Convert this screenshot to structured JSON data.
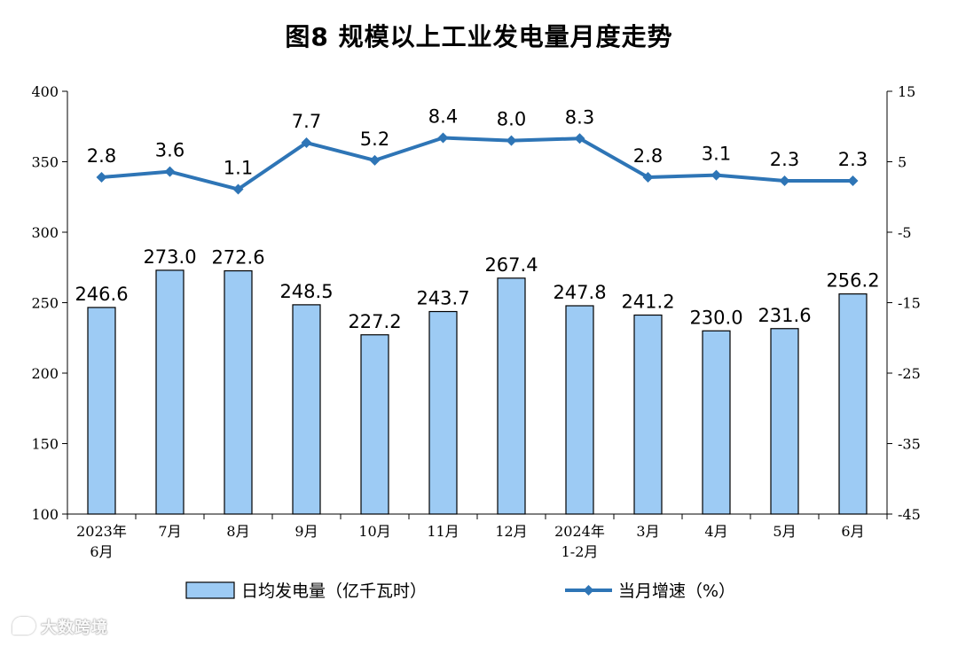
{
  "colors": {
    "bar_fill": "#9DCBF4",
    "bar_stroke": "#000000",
    "line": "#2E75B6",
    "axis": "#000000"
  },
  "chart_data": {
    "type": "bar+line",
    "title": "图8  规模以上工业发电量月度走势",
    "categories": [
      [
        "2023年",
        "6月"
      ],
      [
        "7月"
      ],
      [
        "8月"
      ],
      [
        "9月"
      ],
      [
        "10月"
      ],
      [
        "11月"
      ],
      [
        "12月"
      ],
      [
        "2024年",
        "1-2月"
      ],
      [
        "3月"
      ],
      [
        "4月"
      ],
      [
        "5月"
      ],
      [
        "6月"
      ]
    ],
    "series": [
      {
        "name": "日均发电量（亿千瓦时）",
        "type": "bar",
        "axis": "left",
        "values": [
          246.6,
          273.0,
          272.6,
          248.5,
          227.2,
          243.7,
          267.4,
          247.8,
          241.2,
          230.0,
          231.6,
          256.2
        ],
        "labels": [
          "246.6",
          "273.0",
          "272.6",
          "248.5",
          "227.2",
          "243.7",
          "267.4",
          "247.8",
          "241.2",
          "230.0",
          "231.6",
          "256.2"
        ]
      },
      {
        "name": "当月增速（%）",
        "type": "line",
        "axis": "right",
        "values": [
          2.8,
          3.6,
          1.1,
          7.7,
          5.2,
          8.4,
          8.0,
          8.3,
          2.8,
          3.1,
          2.3,
          2.3
        ],
        "labels": [
          "2.8",
          "3.6",
          "1.1",
          "7.7",
          "5.2",
          "8.4",
          "8.0",
          "8.3",
          "2.8",
          "3.1",
          "2.3",
          "2.3"
        ]
      }
    ],
    "y_left": {
      "ylim": [
        100,
        400
      ],
      "ticks": [
        100,
        150,
        200,
        250,
        300,
        350,
        400
      ]
    },
    "y_right": {
      "ylim": [
        -45,
        15
      ],
      "ticks": [
        -45,
        -35,
        -25,
        -15,
        -5,
        5,
        15
      ]
    },
    "grid": false,
    "legend_position": "bottom-center"
  },
  "watermark": {
    "text": "大数跨境"
  }
}
